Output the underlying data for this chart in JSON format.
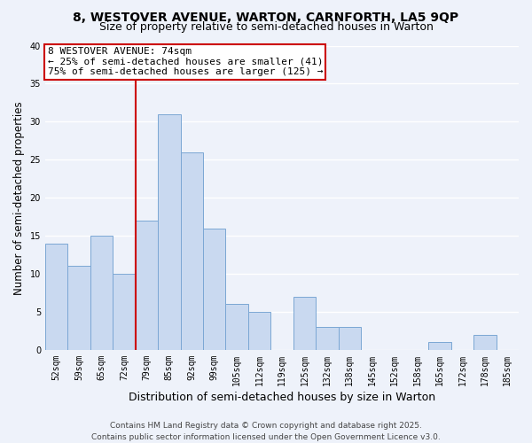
{
  "title": "8, WESTOVER AVENUE, WARTON, CARNFORTH, LA5 9QP",
  "subtitle": "Size of property relative to semi-detached houses in Warton",
  "xlabel": "Distribution of semi-detached houses by size in Warton",
  "ylabel": "Number of semi-detached properties",
  "categories": [
    "52sqm",
    "59sqm",
    "65sqm",
    "72sqm",
    "79sqm",
    "85sqm",
    "92sqm",
    "99sqm",
    "105sqm",
    "112sqm",
    "119sqm",
    "125sqm",
    "132sqm",
    "138sqm",
    "145sqm",
    "152sqm",
    "158sqm",
    "165sqm",
    "172sqm",
    "178sqm",
    "185sqm"
  ],
  "values": [
    14,
    11,
    15,
    10,
    17,
    31,
    26,
    16,
    6,
    5,
    0,
    7,
    3,
    3,
    0,
    0,
    0,
    1,
    0,
    2,
    0
  ],
  "bar_color": "#c9d9f0",
  "bar_edge_color": "#7ba7d4",
  "ylim": [
    0,
    40
  ],
  "yticks": [
    0,
    5,
    10,
    15,
    20,
    25,
    30,
    35,
    40
  ],
  "vline_x": 3.5,
  "vline_color": "#cc0000",
  "annotation_title": "8 WESTOVER AVENUE: 74sqm",
  "annotation_line1": "← 25% of semi-detached houses are smaller (41)",
  "annotation_line2": "75% of semi-detached houses are larger (125) →",
  "annotation_box_color": "#ffffff",
  "annotation_box_edge": "#cc0000",
  "footer_line1": "Contains HM Land Registry data © Crown copyright and database right 2025.",
  "footer_line2": "Contains public sector information licensed under the Open Government Licence v3.0.",
  "bg_color": "#eef2fa",
  "grid_color": "#ffffff",
  "title_fontsize": 10,
  "subtitle_fontsize": 9,
  "tick_fontsize": 7,
  "ylabel_fontsize": 8.5,
  "xlabel_fontsize": 9,
  "annotation_fontsize": 8,
  "footer_fontsize": 6.5
}
